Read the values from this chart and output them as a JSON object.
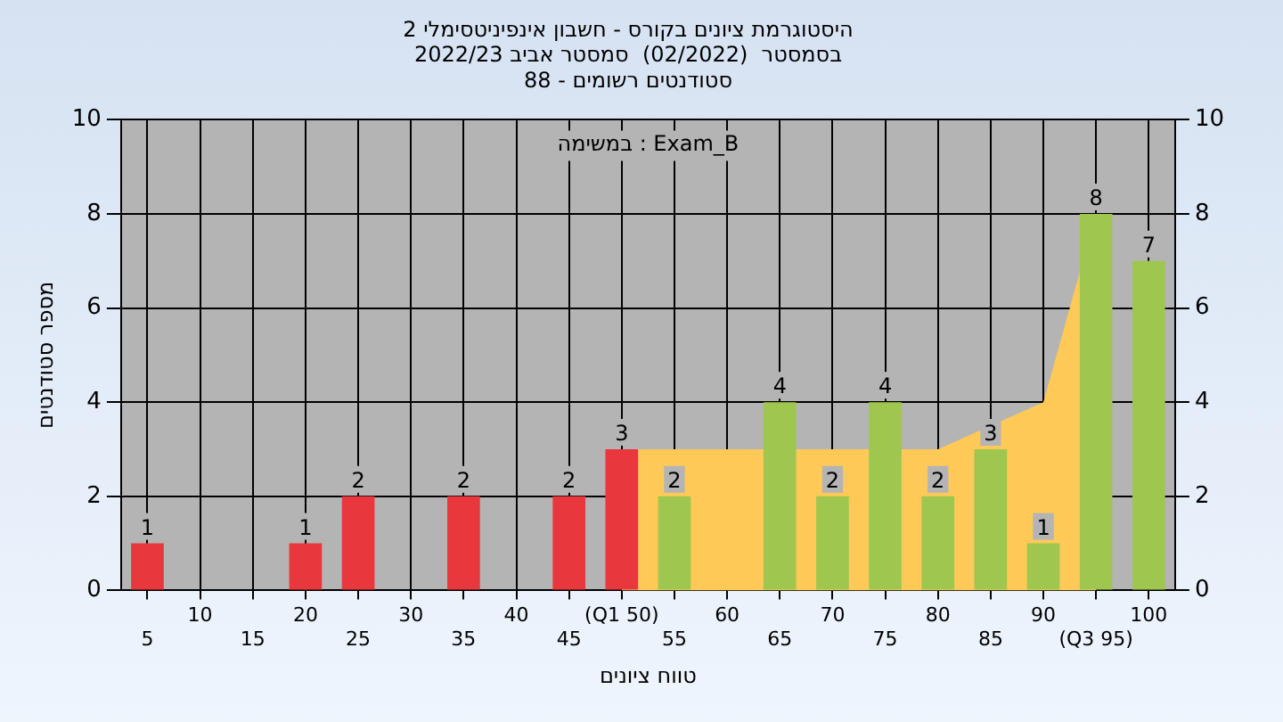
{
  "chart_data": {
    "type": "bar",
    "title": "היסטוגרמת ציונים בקורס - חשבון אינפיניטסימלי 2",
    "subtitle": "בסמסטר  (02/2022)  סמסטר אביב 2022/23\nסטודנטים רשומים - 88",
    "xlabel": "טווח ציונים",
    "ylabel": "מספר סטודנטים",
    "annotations": [
      "במשימה : Exam_B"
    ],
    "categories": [
      "5",
      "10",
      "15",
      "20",
      "25",
      "30",
      "35",
      "40",
      "45",
      "(Q1 50)",
      "55",
      "60",
      "65",
      "70",
      "75",
      "80",
      "85",
      "90",
      "(Q3 95)",
      "100"
    ],
    "series": [
      {
        "type": "area",
        "color": "#fec956",
        "values": [
          null,
          null,
          null,
          null,
          null,
          null,
          null,
          null,
          null,
          3,
          3,
          3,
          null,
          3,
          null,
          3,
          null,
          4,
          8,
          null
        ]
      },
      {
        "colors": [
          "#e8383d",
          "#e8383d",
          "#e8383d",
          "#e8383d",
          "#e8383d",
          "#e8383d",
          "#e8383d",
          "#e8383d",
          "#e8383d",
          "#e8383d",
          "#9fc74f",
          "#9fc74f",
          "#9fc74f",
          "#9fc74f",
          "#9fc74f",
          "#9fc74f",
          "#9fc74f",
          "#9fc74f",
          "#9fc74f",
          "#9fc74f"
        ],
        "values": [
          1,
          0,
          0,
          1,
          2,
          0,
          2,
          0,
          2,
          3,
          2,
          0,
          4,
          2,
          4,
          2,
          3,
          1,
          8,
          7
        ],
        "value_labels": [
          "1",
          null,
          null,
          "1",
          "2",
          null,
          "2",
          null,
          "2",
          "3",
          "2",
          null,
          "4",
          "2",
          "4",
          "2",
          "3",
          "1",
          "8",
          "7"
        ]
      }
    ],
    "ylim": [
      0,
      10
    ],
    "yticks": [
      0,
      2,
      4,
      6,
      8,
      10
    ],
    "y2lim": [
      0,
      10
    ],
    "y2ticks": [
      0,
      2,
      4,
      6,
      8,
      10
    ],
    "grid": true,
    "legend": false
  }
}
